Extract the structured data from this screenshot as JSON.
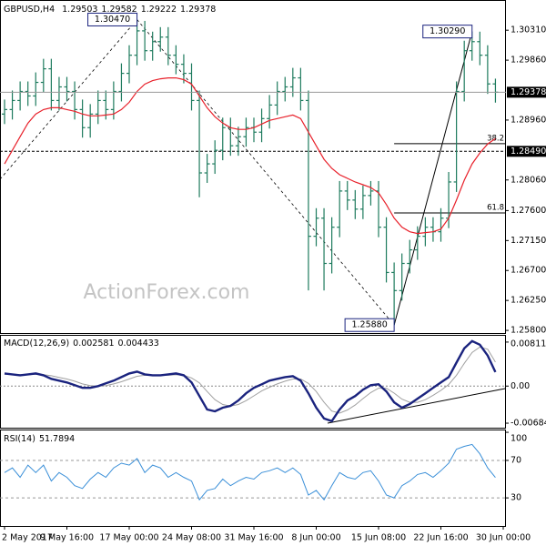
{
  "chart_data": [
    {
      "type": "ohlc",
      "title": "GBPUSD,H4",
      "color": "#1e7b5e",
      "watermark": "ActionForex.com",
      "xlim": [
        0,
        64
      ],
      "xticks": [
        {
          "value": 0,
          "label": "2 May 2017"
        },
        {
          "value": 8,
          "label": "9 May 16:00"
        },
        {
          "value": 16,
          "label": "17 May 00:00"
        },
        {
          "value": 24,
          "label": "24 May 08:00"
        },
        {
          "value": 32,
          "label": "31 May 16:00"
        },
        {
          "value": 40,
          "label": "8 Jun 00:00"
        },
        {
          "value": 48,
          "label": "15 Jun 08:00"
        },
        {
          "value": 56,
          "label": "22 Jun 16:00"
        },
        {
          "value": 64,
          "label": "30 Jun 00:00"
        }
      ],
      "ylim": [
        1.2576,
        1.3075
      ],
      "yticks": [
        {
          "value": 1.3031,
          "label": "1.30310"
        },
        {
          "value": 1.2986,
          "label": "1.29860"
        },
        {
          "value": 1.2896,
          "label": "1.28960"
        },
        {
          "value": 1.2806,
          "label": "1.28060"
        },
        {
          "value": 1.276,
          "label": "1.27600"
        },
        {
          "value": 1.2715,
          "label": "1.27150"
        },
        {
          "value": 1.267,
          "label": "1.26700"
        },
        {
          "value": 1.2625,
          "label": "1.26250"
        },
        {
          "value": 1.258,
          "label": "1.25800"
        }
      ],
      "open": [
        1.2905,
        1.29118,
        1.29254,
        1.2939,
        1.29322,
        1.29526,
        1.2973,
        1.29254,
        1.29458,
        1.2939,
        1.29118,
        1.28846,
        1.2905,
        1.29254,
        1.29118,
        1.2939,
        1.29662,
        1.29934,
        1.303,
        1.30002,
        1.30138,
        1.30206,
        1.29934,
        1.29798,
        1.29662,
        1.29254,
        1.28166,
        1.28302,
        1.28506,
        1.28846,
        1.28574,
        1.2871,
        1.28846,
        1.28778,
        1.28982,
        1.29186,
        1.2939,
        1.29458,
        1.29594,
        1.29254,
        1.27214,
        1.27486,
        1.26806,
        1.2735,
        1.27894,
        1.27758,
        1.27622,
        1.27826,
        1.27894,
        1.2735,
        1.2667,
        1.26398,
        1.26806,
        1.2701,
        1.27214,
        1.2735,
        1.27282,
        1.27486,
        1.2803,
        1.2939,
        1.30002,
        1.30138,
        1.29934,
        1.29503
      ],
      "high": [
        1.29268,
        1.29404,
        1.2954,
        1.2954,
        1.29676,
        1.2988,
        1.2988,
        1.29608,
        1.29608,
        1.2954,
        1.29268,
        1.292,
        1.29404,
        1.29404,
        1.2954,
        1.29812,
        1.30084,
        1.3047,
        1.3045,
        1.30288,
        1.30356,
        1.30356,
        1.30084,
        1.29948,
        1.29812,
        1.29404,
        1.28452,
        1.28656,
        1.28996,
        1.28996,
        1.2886,
        1.28996,
        1.28996,
        1.29132,
        1.29336,
        1.2954,
        1.29608,
        1.29744,
        1.29744,
        1.29404,
        1.27636,
        1.27636,
        1.275,
        1.28044,
        1.28044,
        1.27908,
        1.27976,
        1.28044,
        1.28044,
        1.275,
        1.2682,
        1.26956,
        1.2716,
        1.27364,
        1.275,
        1.275,
        1.27636,
        1.2818,
        1.2954,
        1.30152,
        1.3029,
        1.30288,
        1.30084,
        1.29582
      ],
      "low": [
        1.289,
        1.28968,
        1.29104,
        1.29172,
        1.29172,
        1.29376,
        1.29104,
        1.29104,
        1.2924,
        1.28968,
        1.28696,
        1.28696,
        1.289,
        1.28968,
        1.28968,
        1.2924,
        1.29512,
        1.29784,
        1.29852,
        1.29852,
        1.29988,
        1.29784,
        1.29648,
        1.29512,
        1.29104,
        1.278,
        1.28016,
        1.28152,
        1.28356,
        1.28424,
        1.28424,
        1.2856,
        1.28628,
        1.28628,
        1.28832,
        1.29036,
        1.2924,
        1.29308,
        1.29104,
        1.264,
        1.27064,
        1.264,
        1.26656,
        1.272,
        1.27608,
        1.27472,
        1.27472,
        1.27676,
        1.272,
        1.2652,
        1.2588,
        1.26248,
        1.26656,
        1.2686,
        1.27064,
        1.27132,
        1.27132,
        1.27336,
        1.2788,
        1.2924,
        1.29852,
        1.29784,
        1.29353,
        1.29222
      ],
      "close": [
        1.29118,
        1.29254,
        1.2939,
        1.29322,
        1.29526,
        1.2973,
        1.29254,
        1.29458,
        1.2939,
        1.29118,
        1.28846,
        1.2905,
        1.29254,
        1.29118,
        1.2939,
        1.29662,
        1.29934,
        1.303,
        1.30002,
        1.30138,
        1.30206,
        1.29934,
        1.29798,
        1.29662,
        1.29254,
        1.28166,
        1.28302,
        1.28506,
        1.28846,
        1.28574,
        1.2871,
        1.28846,
        1.28778,
        1.28982,
        1.29186,
        1.2939,
        1.29458,
        1.29594,
        1.29254,
        1.27214,
        1.27486,
        1.26806,
        1.2735,
        1.27894,
        1.27758,
        1.27622,
        1.27826,
        1.27894,
        1.2735,
        1.2667,
        1.26398,
        1.26806,
        1.2701,
        1.27214,
        1.2735,
        1.27282,
        1.27486,
        1.2803,
        1.2939,
        1.30002,
        1.30138,
        1.29934,
        1.29503,
        1.29378
      ],
      "ma": {
        "color": "#e8202a",
        "values": [
          1.28302,
          1.28506,
          1.2871,
          1.28914,
          1.2905,
          1.29118,
          1.29145,
          1.29145,
          1.29118,
          1.29091,
          1.2905,
          1.29023,
          1.29023,
          1.29036,
          1.2905,
          1.29118,
          1.29227,
          1.2939,
          1.29499,
          1.29553,
          1.2958,
          1.29594,
          1.29594,
          1.29567,
          1.29499,
          1.29322,
          1.29145,
          1.29009,
          1.28914,
          1.28846,
          1.28819,
          1.28819,
          1.28846,
          1.289,
          1.28955,
          1.28982,
          1.29009,
          1.29036,
          1.28982,
          1.28778,
          1.28574,
          1.2837,
          1.28234,
          1.28139,
          1.28084,
          1.2803,
          1.27989,
          1.27948,
          1.27867,
          1.2769,
          1.27486,
          1.2735,
          1.27282,
          1.27255,
          1.27269,
          1.27282,
          1.27323,
          1.27486,
          1.27758,
          1.28057,
          1.28302,
          1.28465,
          1.28601,
          1.28683
        ]
      },
      "hline": {
        "value": 1.2849,
        "label": "1.28490"
      },
      "annotations": [
        {
          "label": "1.30470",
          "value": 1.3047,
          "index": 17
        },
        {
          "label": "1.30290",
          "value": 1.3029,
          "index": 60
        },
        {
          "label": "1.25880",
          "value": 1.2588,
          "index": 50
        }
      ],
      "fib": [
        {
          "level": 38.2,
          "price": 1.28605,
          "from_index": 50
        },
        {
          "level": 61.8,
          "price": 1.27565,
          "from_index": 50
        }
      ]
    },
    {
      "type": "line",
      "title": "MACD(12,26,9)",
      "ylim": [
        -0.00768,
        0.00928
      ],
      "yticks": [
        0.008118,
        {
          "value": 0,
          "label": "0.00"
        },
        -0.006844
      ],
      "series": [
        {
          "color": "#1a237e",
          "values": [
            0.00232,
            0.00216,
            0.00199,
            0.00216,
            0.00232,
            0.00199,
            0.00133,
            0.001,
            0.00066,
            0.00017,
            -0.00033,
            -0.00033,
            0,
            0.0005,
            0.001,
            0.00166,
            0.00232,
            0.00266,
            0.00216,
            0.00199,
            0.00199,
            0.00216,
            0.00232,
            0.00199,
            0.00066,
            -0.00183,
            -0.00432,
            -0.00465,
            -0.00398,
            -0.00365,
            -0.00266,
            -0.00133,
            -0.00033,
            0.00033,
            0.001,
            0.00133,
            0.00166,
            0.00183,
            0.001,
            -0.00133,
            -0.00398,
            -0.00598,
            -0.00647,
            -0.00432,
            -0.00266,
            -0.00183,
            -0.00066,
            0.00017,
            0.00033,
            -0.001,
            -0.00299,
            -0.00398,
            -0.00332,
            -0.00232,
            -0.00133,
            -0.00033,
            0.00066,
            0.00166,
            0.00432,
            0.00697,
            0.0083,
            0.00764,
            0.00564,
            0.002581
          ]
        },
        {
          "color": "#a0a0a0",
          "values": [
            0.0022,
            0.0022,
            0.0021,
            0.0021,
            0.0022,
            0.0021,
            0.0019,
            0.0016,
            0.0013,
            0.0009,
            0.0004,
            0.0001,
            0,
            0.0001,
            0.0004,
            0.0008,
            0.0013,
            0.0018,
            0.002,
            0.002,
            0.002,
            0.002,
            0.0021,
            0.002,
            0.0015,
            0.0006,
            -0.001,
            -0.0025,
            -0.0034,
            -0.0037,
            -0.0034,
            -0.0027,
            -0.0018,
            -0.0009,
            -0.0002,
            0.0004,
            0.0009,
            0.0013,
            0.0013,
            0.0005,
            -0.001,
            -0.003,
            -0.0046,
            -0.005,
            -0.0044,
            -0.0035,
            -0.0023,
            -0.0012,
            -0.0004,
            -0.0004,
            -0.0013,
            -0.0024,
            -0.003,
            -0.003,
            -0.0025,
            -0.0017,
            -0.0008,
            0.0003,
            0.002,
            0.0042,
            0.0062,
            0.0072,
            0.0068,
            0.004433
          ]
        }
      ]
    },
    {
      "type": "line",
      "title": "RSI(14)",
      "ylim": [
        0,
        102
      ],
      "yticks": [
        100,
        70,
        30
      ],
      "levels": [
        70,
        30
      ],
      "series": [
        {
          "color": "#3a8fd8",
          "values": [
            57,
            62,
            52,
            65,
            57,
            65,
            48,
            57,
            52,
            43,
            40,
            50,
            57,
            52,
            62,
            67,
            65,
            72,
            57,
            65,
            62,
            52,
            57,
            52,
            48,
            28,
            38,
            40,
            50,
            43,
            48,
            52,
            50,
            57,
            59,
            62,
            57,
            62,
            55,
            33,
            38,
            28,
            43,
            57,
            52,
            50,
            57,
            59,
            48,
            33,
            30,
            43,
            48,
            55,
            57,
            52,
            59,
            67,
            82,
            85,
            87,
            77,
            62,
            51.7894
          ]
        }
      ]
    }
  ]
}
